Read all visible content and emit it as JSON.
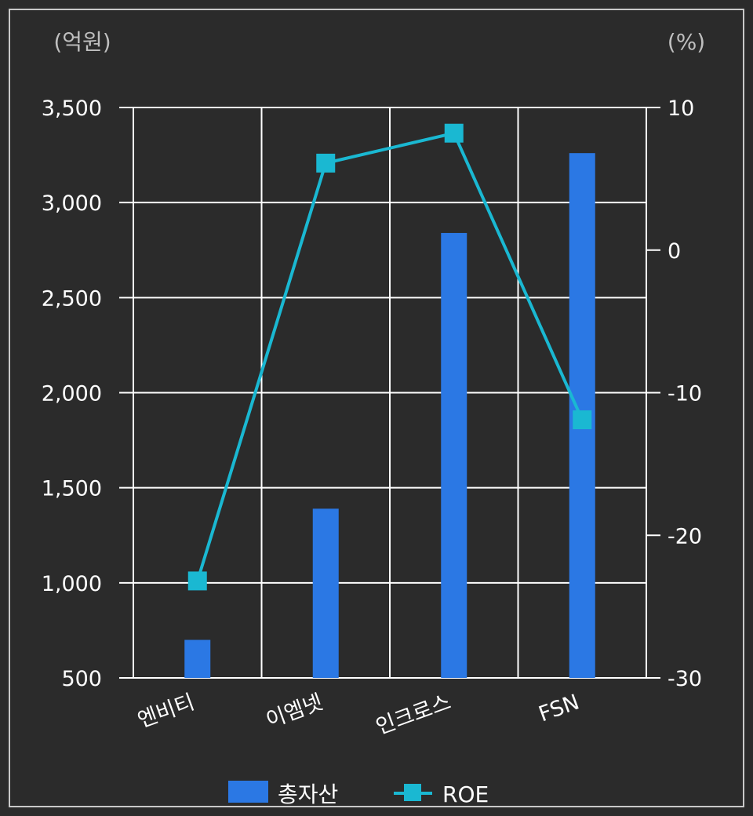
{
  "chart_data": {
    "type": "bar+line",
    "categories": [
      "엔비티",
      "이엠넷",
      "인크로스",
      "FSN"
    ],
    "left_axis": {
      "unit_label": "(억원)",
      "ylim": [
        500,
        3500
      ],
      "ticks": [
        500,
        1000,
        1500,
        2000,
        2500,
        3000,
        3500
      ],
      "tick_labels": [
        "500",
        "1,000",
        "1,500",
        "2,000",
        "2,500",
        "3,000",
        "3,500"
      ]
    },
    "right_axis": {
      "unit_label": "(%)",
      "ylim": [
        -30,
        10
      ],
      "ticks": [
        -30,
        -20,
        -10,
        0,
        10
      ],
      "tick_labels": [
        "-30",
        "-20",
        "-10",
        "0",
        "10"
      ]
    },
    "series": [
      {
        "name": "총자산",
        "type": "bar",
        "axis": "left",
        "color": "#2b78e4",
        "values": [
          700,
          1390,
          2840,
          3260
        ]
      },
      {
        "name": "ROE",
        "type": "line",
        "axis": "right",
        "color": "#1ab8d2",
        "marker": "square",
        "values": [
          -23.2,
          6.1,
          8.2,
          -11.9
        ]
      }
    ],
    "grid": true,
    "legend_position": "bottom-center",
    "colors": {
      "background": "#2b2b2b",
      "border": "#c8c8c8",
      "grid": "#ffffff",
      "text": "#ffffff",
      "unit_text": "#bfbfbf"
    }
  }
}
